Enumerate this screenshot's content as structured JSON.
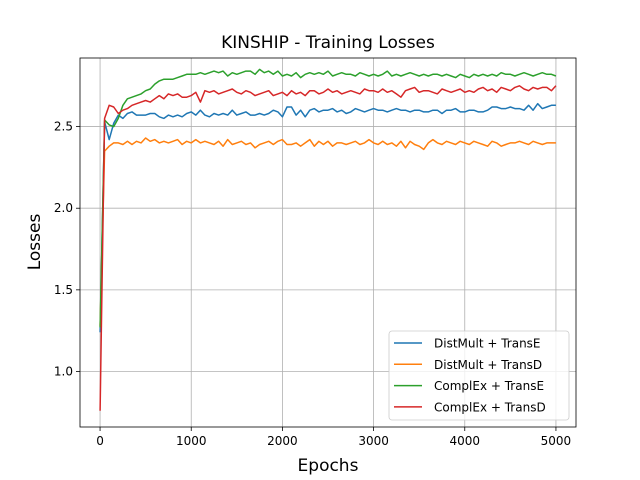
{
  "chart_data": {
    "type": "line",
    "title": "KINSHIP - Training Losses",
    "xlabel": "Epochs",
    "ylabel": "Losses",
    "xlim": [
      -220,
      5220
    ],
    "ylim": [
      0.66,
      2.92
    ],
    "xticks": [
      0,
      1000,
      2000,
      3000,
      4000,
      5000
    ],
    "xtick_labels": [
      "0",
      "1000",
      "2000",
      "3000",
      "4000",
      "5000"
    ],
    "yticks": [
      1.0,
      1.5,
      2.0,
      2.5
    ],
    "ytick_labels": [
      "1.0",
      "1.5",
      "2.0",
      "2.5"
    ],
    "grid": true,
    "legend_position": "lower-right",
    "series": [
      {
        "name": "DistMult + TransE",
        "color": "#1f77b4",
        "x": [
          0,
          50,
          100,
          150,
          200,
          250,
          300,
          350,
          400,
          450,
          500,
          550,
          600,
          650,
          700,
          750,
          800,
          850,
          900,
          950,
          1000,
          1050,
          1100,
          1150,
          1200,
          1250,
          1300,
          1350,
          1400,
          1450,
          1500,
          1550,
          1600,
          1650,
          1700,
          1750,
          1800,
          1850,
          1900,
          1950,
          2000,
          2050,
          2100,
          2150,
          2200,
          2250,
          2300,
          2350,
          2400,
          2450,
          2500,
          2550,
          2600,
          2650,
          2700,
          2750,
          2800,
          2850,
          2900,
          2950,
          3000,
          3050,
          3100,
          3150,
          3200,
          3250,
          3300,
          3350,
          3400,
          3450,
          3500,
          3550,
          3600,
          3650,
          3700,
          3750,
          3800,
          3850,
          3900,
          3950,
          4000,
          4050,
          4100,
          4150,
          4200,
          4250,
          4300,
          4350,
          4400,
          4450,
          4500,
          4550,
          4600,
          4650,
          4700,
          4750,
          4800,
          4850,
          4900,
          4950,
          5000
        ],
        "values": [
          1.24,
          2.53,
          2.42,
          2.52,
          2.57,
          2.55,
          2.58,
          2.59,
          2.57,
          2.57,
          2.57,
          2.58,
          2.58,
          2.56,
          2.55,
          2.57,
          2.56,
          2.57,
          2.56,
          2.58,
          2.59,
          2.57,
          2.6,
          2.57,
          2.56,
          2.58,
          2.57,
          2.58,
          2.57,
          2.6,
          2.57,
          2.58,
          2.59,
          2.57,
          2.57,
          2.58,
          2.57,
          2.58,
          2.6,
          2.59,
          2.56,
          2.62,
          2.62,
          2.57,
          2.6,
          2.56,
          2.6,
          2.61,
          2.59,
          2.6,
          2.6,
          2.61,
          2.59,
          2.6,
          2.58,
          2.59,
          2.61,
          2.6,
          2.59,
          2.6,
          2.61,
          2.6,
          2.6,
          2.59,
          2.6,
          2.61,
          2.6,
          2.6,
          2.59,
          2.6,
          2.6,
          2.59,
          2.59,
          2.6,
          2.6,
          2.58,
          2.6,
          2.6,
          2.61,
          2.59,
          2.59,
          2.6,
          2.6,
          2.59,
          2.59,
          2.6,
          2.62,
          2.62,
          2.61,
          2.61,
          2.62,
          2.61,
          2.61,
          2.6,
          2.63,
          2.6,
          2.64,
          2.61,
          2.62,
          2.63,
          2.63
        ]
      },
      {
        "name": "DistMult + TransD",
        "color": "#ff7f0e",
        "x": [
          0,
          50,
          100,
          150,
          200,
          250,
          300,
          350,
          400,
          450,
          500,
          550,
          600,
          650,
          700,
          750,
          800,
          850,
          900,
          950,
          1000,
          1050,
          1100,
          1150,
          1200,
          1250,
          1300,
          1350,
          1400,
          1450,
          1500,
          1550,
          1600,
          1650,
          1700,
          1750,
          1800,
          1850,
          1900,
          1950,
          2000,
          2050,
          2100,
          2150,
          2200,
          2250,
          2300,
          2350,
          2400,
          2450,
          2500,
          2550,
          2600,
          2650,
          2700,
          2750,
          2800,
          2850,
          2900,
          2950,
          3000,
          3050,
          3100,
          3150,
          3200,
          3250,
          3300,
          3350,
          3400,
          3450,
          3500,
          3550,
          3600,
          3650,
          3700,
          3750,
          3800,
          3850,
          3900,
          3950,
          4000,
          4050,
          4100,
          4150,
          4200,
          4250,
          4300,
          4350,
          4400,
          4450,
          4500,
          4550,
          4600,
          4650,
          4700,
          4750,
          4800,
          4850,
          4900,
          4950,
          5000
        ],
        "values": [
          1.28,
          2.35,
          2.38,
          2.4,
          2.4,
          2.39,
          2.41,
          2.39,
          2.41,
          2.4,
          2.43,
          2.41,
          2.42,
          2.4,
          2.41,
          2.4,
          2.41,
          2.42,
          2.39,
          2.41,
          2.4,
          2.42,
          2.4,
          2.41,
          2.4,
          2.39,
          2.41,
          2.38,
          2.42,
          2.39,
          2.4,
          2.41,
          2.39,
          2.4,
          2.37,
          2.39,
          2.4,
          2.41,
          2.39,
          2.41,
          2.42,
          2.39,
          2.39,
          2.4,
          2.38,
          2.4,
          2.42,
          2.38,
          2.41,
          2.39,
          2.41,
          2.38,
          2.4,
          2.4,
          2.39,
          2.4,
          2.41,
          2.39,
          2.4,
          2.42,
          2.4,
          2.39,
          2.41,
          2.39,
          2.4,
          2.38,
          2.41,
          2.37,
          2.41,
          2.39,
          2.38,
          2.36,
          2.4,
          2.42,
          2.4,
          2.39,
          2.41,
          2.4,
          2.39,
          2.41,
          2.4,
          2.39,
          2.41,
          2.4,
          2.39,
          2.38,
          2.41,
          2.4,
          2.38,
          2.39,
          2.4,
          2.4,
          2.41,
          2.4,
          2.39,
          2.41,
          2.4,
          2.39,
          2.4,
          2.4,
          2.4
        ]
      },
      {
        "name": "ComplEx + TransE",
        "color": "#2ca02c",
        "x": [
          0,
          50,
          100,
          150,
          200,
          250,
          300,
          350,
          400,
          450,
          500,
          550,
          600,
          650,
          700,
          750,
          800,
          850,
          900,
          950,
          1000,
          1050,
          1100,
          1150,
          1200,
          1250,
          1300,
          1350,
          1400,
          1450,
          1500,
          1550,
          1600,
          1650,
          1700,
          1750,
          1800,
          1850,
          1900,
          1950,
          2000,
          2050,
          2100,
          2150,
          2200,
          2250,
          2300,
          2350,
          2400,
          2450,
          2500,
          2550,
          2600,
          2650,
          2700,
          2750,
          2800,
          2850,
          2900,
          2950,
          3000,
          3050,
          3100,
          3150,
          3200,
          3250,
          3300,
          3350,
          3400,
          3450,
          3500,
          3550,
          3600,
          3650,
          3700,
          3750,
          3800,
          3850,
          3900,
          3950,
          4000,
          4050,
          4100,
          4150,
          4200,
          4250,
          4300,
          4350,
          4400,
          4450,
          4500,
          4550,
          4600,
          4650,
          4700,
          4750,
          4800,
          4850,
          4900,
          4950,
          5000
        ],
        "values": [
          1.27,
          2.54,
          2.51,
          2.5,
          2.55,
          2.63,
          2.67,
          2.68,
          2.69,
          2.7,
          2.72,
          2.73,
          2.76,
          2.78,
          2.79,
          2.79,
          2.79,
          2.8,
          2.81,
          2.82,
          2.82,
          2.82,
          2.83,
          2.82,
          2.83,
          2.84,
          2.83,
          2.84,
          2.81,
          2.83,
          2.82,
          2.83,
          2.84,
          2.84,
          2.82,
          2.85,
          2.83,
          2.84,
          2.82,
          2.84,
          2.81,
          2.82,
          2.81,
          2.83,
          2.8,
          2.82,
          2.83,
          2.82,
          2.83,
          2.82,
          2.84,
          2.81,
          2.82,
          2.83,
          2.82,
          2.82,
          2.81,
          2.83,
          2.82,
          2.81,
          2.82,
          2.81,
          2.82,
          2.84,
          2.81,
          2.82,
          2.81,
          2.82,
          2.83,
          2.82,
          2.81,
          2.82,
          2.81,
          2.82,
          2.82,
          2.81,
          2.82,
          2.81,
          2.8,
          2.82,
          2.81,
          2.8,
          2.82,
          2.81,
          2.82,
          2.81,
          2.82,
          2.81,
          2.83,
          2.82,
          2.82,
          2.81,
          2.82,
          2.83,
          2.82,
          2.81,
          2.82,
          2.83,
          2.82,
          2.82,
          2.81
        ]
      },
      {
        "name": "ComplEx + TransD",
        "color": "#d62728",
        "x": [
          0,
          50,
          100,
          150,
          200,
          250,
          300,
          350,
          400,
          450,
          500,
          550,
          600,
          650,
          700,
          750,
          800,
          850,
          900,
          950,
          1000,
          1050,
          1100,
          1150,
          1200,
          1250,
          1300,
          1350,
          1400,
          1450,
          1500,
          1550,
          1600,
          1650,
          1700,
          1750,
          1800,
          1850,
          1900,
          1950,
          2000,
          2050,
          2100,
          2150,
          2200,
          2250,
          2300,
          2350,
          2400,
          2450,
          2500,
          2550,
          2600,
          2650,
          2700,
          2750,
          2800,
          2850,
          2900,
          2950,
          3000,
          3050,
          3100,
          3150,
          3200,
          3250,
          3300,
          3350,
          3400,
          3450,
          3500,
          3550,
          3600,
          3650,
          3700,
          3750,
          3800,
          3850,
          3900,
          3950,
          4000,
          4050,
          4100,
          4150,
          4200,
          4250,
          4300,
          4350,
          4400,
          4450,
          4500,
          4550,
          4600,
          4650,
          4700,
          4750,
          4800,
          4850,
          4900,
          4950,
          5000
        ],
        "values": [
          0.76,
          2.55,
          2.63,
          2.62,
          2.58,
          2.6,
          2.61,
          2.63,
          2.64,
          2.65,
          2.66,
          2.65,
          2.67,
          2.69,
          2.67,
          2.7,
          2.69,
          2.7,
          2.68,
          2.68,
          2.69,
          2.71,
          2.65,
          2.72,
          2.71,
          2.72,
          2.7,
          2.71,
          2.72,
          2.73,
          2.71,
          2.7,
          2.72,
          2.71,
          2.69,
          2.7,
          2.71,
          2.72,
          2.69,
          2.7,
          2.71,
          2.69,
          2.72,
          2.7,
          2.71,
          2.69,
          2.72,
          2.72,
          2.7,
          2.71,
          2.73,
          2.71,
          2.72,
          2.7,
          2.71,
          2.72,
          2.71,
          2.7,
          2.73,
          2.72,
          2.72,
          2.71,
          2.73,
          2.71,
          2.72,
          2.7,
          2.68,
          2.72,
          2.73,
          2.74,
          2.71,
          2.72,
          2.72,
          2.71,
          2.7,
          2.73,
          2.72,
          2.71,
          2.72,
          2.73,
          2.71,
          2.72,
          2.71,
          2.73,
          2.74,
          2.72,
          2.73,
          2.71,
          2.74,
          2.73,
          2.72,
          2.74,
          2.75,
          2.73,
          2.72,
          2.74,
          2.73,
          2.74,
          2.74,
          2.72,
          2.75
        ]
      }
    ]
  }
}
